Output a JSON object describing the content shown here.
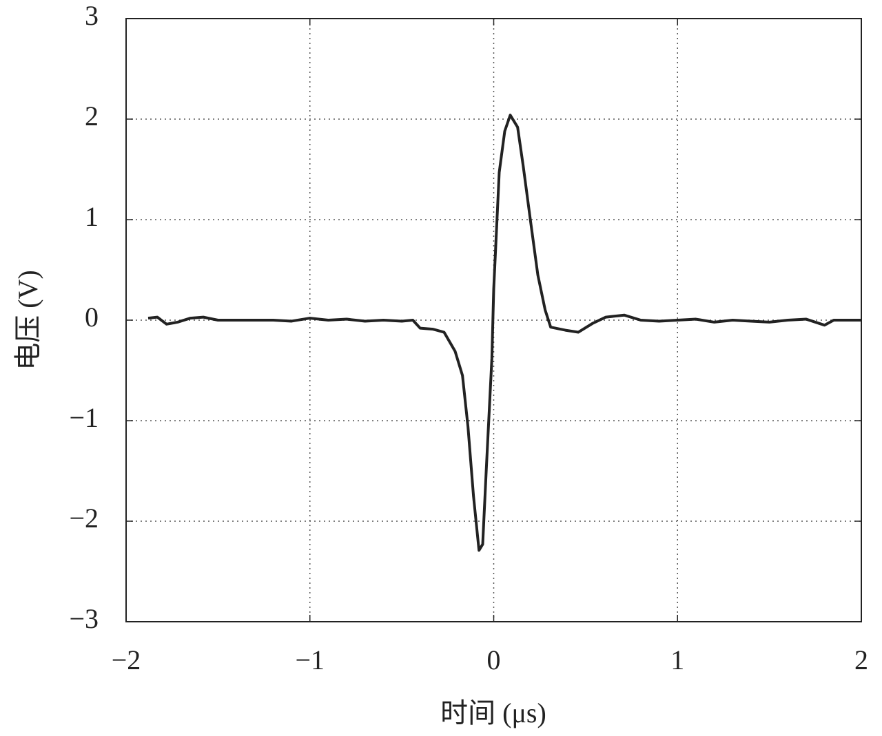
{
  "chart_data": {
    "type": "line",
    "xlabel": "时间 (μs)",
    "ylabel": "电压 (V)",
    "x": [
      -1.88,
      -1.83,
      -1.78,
      -1.72,
      -1.65,
      -1.58,
      -1.5,
      -1.4,
      -1.3,
      -1.2,
      -1.1,
      -1.0,
      -0.9,
      -0.8,
      -0.7,
      -0.6,
      -0.5,
      -0.44,
      -0.4,
      -0.33,
      -0.27,
      -0.21,
      -0.17,
      -0.14,
      -0.11,
      -0.08,
      -0.06,
      -0.04,
      -0.01,
      0.0,
      0.03,
      0.06,
      0.09,
      0.13,
      0.16,
      0.2,
      0.24,
      0.28,
      0.31,
      0.39,
      0.46,
      0.54,
      0.61,
      0.71,
      0.8,
      0.9,
      1.0,
      1.1,
      1.2,
      1.3,
      1.4,
      1.5,
      1.6,
      1.7,
      1.8,
      1.85,
      1.9,
      2.0
    ],
    "series": [
      {
        "name": "电压",
        "color": "#222222",
        "values": [
          0.02,
          0.03,
          -0.04,
          -0.02,
          0.02,
          0.03,
          0.0,
          0.0,
          0.0,
          0.0,
          -0.01,
          0.02,
          0.0,
          0.01,
          -0.01,
          0.0,
          -0.01,
          0.0,
          -0.08,
          -0.09,
          -0.12,
          -0.31,
          -0.55,
          -1.06,
          -1.75,
          -2.29,
          -2.23,
          -1.47,
          -0.38,
          0.31,
          1.47,
          1.88,
          2.04,
          1.92,
          1.54,
          0.99,
          0.45,
          0.1,
          -0.07,
          -0.1,
          -0.12,
          -0.03,
          0.03,
          0.05,
          0.0,
          -0.01,
          0.0,
          0.01,
          -0.02,
          0.0,
          -0.01,
          -0.02,
          0.0,
          0.01,
          -0.05,
          0.0,
          0.0,
          0.0
        ]
      }
    ],
    "xlim": [
      -2,
      2
    ],
    "xticks": [
      {
        "value": -2,
        "label": "−2"
      },
      {
        "value": -1,
        "label": "−1"
      },
      0,
      1,
      2
    ],
    "ylim": [
      -3,
      3
    ],
    "yticks": [
      {
        "value": -3,
        "label": "−3"
      },
      {
        "value": -2,
        "label": "−2"
      },
      {
        "value": -1,
        "label": "−1"
      },
      0,
      1,
      2,
      3
    ],
    "grid": true
  }
}
